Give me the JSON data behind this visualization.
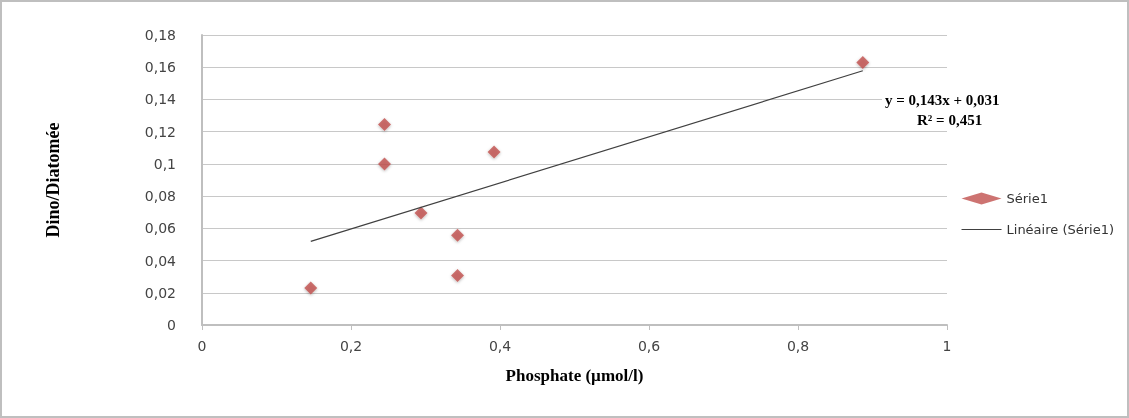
{
  "chart_data": {
    "type": "scatter",
    "xlabel": "Phosphate (µmol/l)",
    "ylabel": "Dino/Diatomée",
    "series": [
      {
        "name": "Série1",
        "type": "scatter",
        "color": "#c0504d",
        "x": [
          0.146,
          0.245,
          0.245,
          0.294,
          0.343,
          0.343,
          0.392,
          0.887
        ],
        "values": [
          0.023,
          0.1245,
          0.1,
          0.0695,
          0.0557,
          0.0307,
          0.1074,
          0.163
        ]
      },
      {
        "name": "Linéaire (Série1)",
        "type": "line",
        "marker": "none",
        "color": "#404040",
        "x": [
          0.146,
          0.887
        ],
        "values": [
          0.0519,
          0.1578
        ]
      }
    ],
    "annotations": [
      "y = 0,143x + 0,031",
      "R² = 0,451"
    ],
    "marker": "diamond",
    "line_style": "solid",
    "xlim": [
      0,
      1
    ],
    "xticks": [
      0,
      {
        "value": 0.2,
        "label": "0,2"
      },
      {
        "value": 0.4,
        "label": "0,4"
      },
      {
        "value": 0.6,
        "label": "0,6"
      },
      {
        "value": 0.8,
        "label": "0,8"
      },
      1
    ],
    "ylim": [
      0,
      0.18
    ],
    "yticks": [
      0,
      {
        "value": 0.02,
        "label": "0,02"
      },
      {
        "value": 0.04,
        "label": "0,04"
      },
      {
        "value": 0.06,
        "label": "0,06"
      },
      {
        "value": 0.08,
        "label": "0,08"
      },
      {
        "value": 0.1,
        "label": "0,1"
      },
      {
        "value": 0.12,
        "label": "0,12"
      },
      {
        "value": 0.14,
        "label": "0,14"
      },
      {
        "value": 0.16,
        "label": "0,16"
      },
      {
        "value": 0.18,
        "label": "0,18"
      }
    ],
    "grid": "y",
    "legend": "right"
  }
}
